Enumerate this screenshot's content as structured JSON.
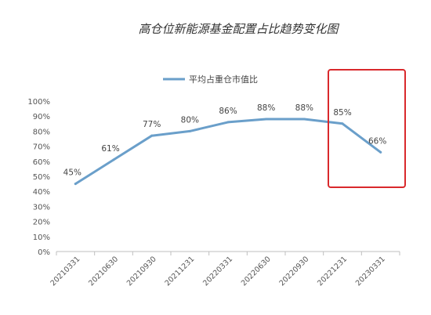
{
  "chart_data": {
    "type": "line",
    "title": "高仓位新能源基金配置占比趋势变化图",
    "xlabel": "",
    "ylabel": "",
    "categories": [
      "20210331",
      "20210630",
      "20210930",
      "20211231",
      "20220331",
      "20220630",
      "20220930",
      "20221231",
      "20230331"
    ],
    "series": [
      {
        "name": "平均占重仓市值比",
        "values": [
          45,
          61,
          77,
          80,
          86,
          88,
          88,
          85,
          66
        ],
        "labels": [
          "45%",
          "61%",
          "77%",
          "80%",
          "86%",
          "88%",
          "88%",
          "85%",
          "66%"
        ],
        "color": "#6a9fca"
      }
    ],
    "ylim": [
      0,
      100
    ],
    "yticks": [
      "0%",
      "10%",
      "20%",
      "30%",
      "40%",
      "50%",
      "60%",
      "70%",
      "80%",
      "90%",
      "100%"
    ],
    "grid": false,
    "legend": "top",
    "highlight_color": "#d9292c"
  }
}
